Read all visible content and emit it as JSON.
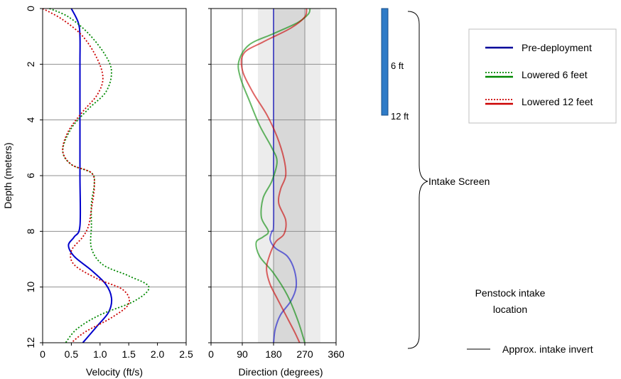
{
  "chart_data": [
    {
      "type": "line",
      "panel": "velocity",
      "xlabel": "Velocity (ft/s)",
      "ylabel": "Depth (meters)",
      "xlim": [
        0,
        2.5
      ],
      "ylim": [
        0,
        12
      ],
      "y_inverted": true,
      "x_ticks": [
        "0",
        "0.5",
        "1.0",
        "1.5",
        "2.0",
        "2.5"
      ],
      "y_ticks": [
        "0",
        "2",
        "4",
        "6",
        "8",
        "10",
        "12"
      ],
      "grid": "horizontal",
      "series": [
        {
          "name": "Pre-deployment",
          "color": "#0000cc",
          "style": "solid",
          "points": [
            [
              0.5,
              0
            ],
            [
              0.62,
              0.5
            ],
            [
              0.65,
              1
            ],
            [
              0.65,
              2
            ],
            [
              0.65,
              4
            ],
            [
              0.65,
              6
            ],
            [
              0.65,
              7.8
            ],
            [
              0.55,
              8.2
            ],
            [
              0.45,
              8.5
            ],
            [
              0.55,
              8.9
            ],
            [
              0.85,
              9.4
            ],
            [
              1.1,
              9.9
            ],
            [
              1.2,
              10.4
            ],
            [
              1.15,
              10.9
            ],
            [
              0.95,
              11.4
            ],
            [
              0.7,
              12
            ]
          ]
        },
        {
          "name": "Lowered 6 feet",
          "color": "#008800",
          "style": "dotted",
          "points": [
            [
              0.12,
              0
            ],
            [
              0.45,
              0.3
            ],
            [
              0.8,
              0.9
            ],
            [
              1.1,
              1.7
            ],
            [
              1.2,
              2.3
            ],
            [
              1.1,
              3
            ],
            [
              0.8,
              3.6
            ],
            [
              0.5,
              4.3
            ],
            [
              0.35,
              5.1
            ],
            [
              0.5,
              5.6
            ],
            [
              0.85,
              5.9
            ],
            [
              0.9,
              6.3
            ],
            [
              0.85,
              7
            ],
            [
              0.85,
              7.8
            ],
            [
              0.85,
              8.6
            ],
            [
              1.05,
              9.2
            ],
            [
              1.5,
              9.6
            ],
            [
              1.85,
              10
            ],
            [
              1.6,
              10.5
            ],
            [
              1.0,
              11
            ],
            [
              0.6,
              11.5
            ],
            [
              0.4,
              12
            ]
          ]
        },
        {
          "name": "Lowered 12 feet",
          "color": "#cc0000",
          "style": "dotted",
          "points": [
            [
              0,
              0
            ],
            [
              0.35,
              0.4
            ],
            [
              0.7,
              1
            ],
            [
              0.95,
              1.8
            ],
            [
              1.05,
              2.5
            ],
            [
              0.95,
              3.1
            ],
            [
              0.7,
              3.7
            ],
            [
              0.45,
              4.4
            ],
            [
              0.35,
              5.1
            ],
            [
              0.5,
              5.6
            ],
            [
              0.85,
              5.9
            ],
            [
              0.9,
              6.4
            ],
            [
              0.85,
              7.2
            ],
            [
              0.8,
              7.8
            ],
            [
              0.7,
              8.2
            ],
            [
              0.5,
              8.7
            ],
            [
              0.55,
              9.2
            ],
            [
              0.95,
              9.7
            ],
            [
              1.4,
              10.1
            ],
            [
              1.5,
              10.6
            ],
            [
              1.2,
              11.1
            ],
            [
              0.75,
              11.6
            ],
            [
              0.5,
              12
            ]
          ]
        }
      ]
    },
    {
      "type": "line",
      "panel": "direction",
      "xlabel": "Direction (degrees)",
      "xlim": [
        0,
        360
      ],
      "ylim": [
        0,
        12
      ],
      "y_inverted": true,
      "x_ticks": [
        "0",
        "90",
        "180",
        "270",
        "360"
      ],
      "grid": "both",
      "shaded_bands": [
        {
          "range": [
            135,
            315
          ],
          "color": "#ececec"
        },
        {
          "range": [
            180,
            270
          ],
          "color": "#d8d8d8"
        }
      ],
      "series": [
        {
          "name": "Pre-deployment",
          "color": "#0000cc",
          "style": "solid",
          "points": [
            [
              180,
              0
            ],
            [
              180,
              2
            ],
            [
              180,
              4
            ],
            [
              180,
              6
            ],
            [
              180,
              7.8
            ],
            [
              175,
              8
            ],
            [
              170,
              8.3
            ],
            [
              185,
              8.6
            ],
            [
              220,
              8.9
            ],
            [
              240,
              9.4
            ],
            [
              245,
              10
            ],
            [
              230,
              10.5
            ],
            [
              200,
              11
            ],
            [
              185,
              11.5
            ],
            [
              180,
              12
            ]
          ]
        },
        {
          "name": "Lowered 6 feet",
          "color": "#008800",
          "style": "solid",
          "points": [
            [
              285,
              0
            ],
            [
              280,
              0.2
            ],
            [
              250,
              0.5
            ],
            [
              180,
              0.9
            ],
            [
              110,
              1.3
            ],
            [
              80,
              1.9
            ],
            [
              85,
              2.5
            ],
            [
              110,
              3.3
            ],
            [
              140,
              4.2
            ],
            [
              175,
              5
            ],
            [
              190,
              5.5
            ],
            [
              175,
              6.2
            ],
            [
              150,
              6.8
            ],
            [
              145,
              7.5
            ],
            [
              165,
              8
            ],
            [
              150,
              8.2
            ],
            [
              130,
              8.4
            ],
            [
              140,
              8.9
            ],
            [
              180,
              9.5
            ],
            [
              220,
              10.3
            ],
            [
              250,
              11.2
            ],
            [
              270,
              12
            ]
          ]
        },
        {
          "name": "Lowered 12 feet",
          "color": "#cc0000",
          "style": "solid",
          "points": [
            [
              275,
              0
            ],
            [
              270,
              0.3
            ],
            [
              230,
              0.7
            ],
            [
              150,
              1.2
            ],
            [
              95,
              1.6
            ],
            [
              90,
              2.2
            ],
            [
              120,
              3
            ],
            [
              160,
              3.8
            ],
            [
              190,
              4.6
            ],
            [
              210,
              5.4
            ],
            [
              215,
              6
            ],
            [
              200,
              6.5
            ],
            [
              195,
              7
            ],
            [
              215,
              7.6
            ],
            [
              210,
              8.1
            ],
            [
              185,
              8.4
            ],
            [
              165,
              9
            ],
            [
              160,
              9.4
            ],
            [
              170,
              9.9
            ],
            [
              190,
              10.4
            ],
            [
              215,
              11
            ],
            [
              240,
              11.6
            ],
            [
              255,
              12
            ]
          ]
        }
      ]
    }
  ],
  "scale_bar": {
    "labels": [
      "6 ft",
      "12 ft"
    ],
    "color": "#2e7bc7"
  },
  "brace_label": "Intake Screen",
  "annotations": {
    "penstock_line1": "Penstock intake",
    "penstock_line2": "location",
    "invert_label": "Approx. intake invert"
  },
  "legend": {
    "placement": "top-right",
    "items": [
      {
        "label": "Pre-deployment",
        "color": "#000099",
        "style": "solid"
      },
      {
        "label": "Lowered 6 feet",
        "color": "#008800",
        "style": "split"
      },
      {
        "label": "Lowered 12 feet",
        "color": "#cc0000",
        "style": "split"
      }
    ]
  }
}
